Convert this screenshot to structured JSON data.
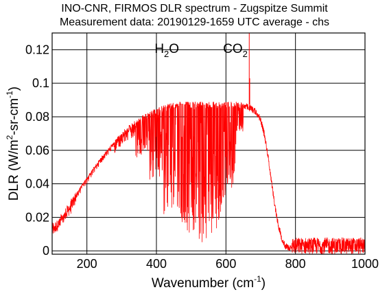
{
  "chart_data": {
    "type": "line",
    "title": "INO-CNR, FIRMOS DLR spectrum - Zugspitze Summit",
    "subtitle": "Measurement data: 20190129-1659 UTC average - chs",
    "xlabel": "Wavenumber (cm",
    "xlabel_sup": "-1",
    "xlabel_end": ")",
    "ylabel": "DLR (W/m",
    "ylabel_sup1": "2",
    "ylabel_mid": "-sr-cm",
    "ylabel_sup2": "-1",
    "ylabel_end": ")",
    "xlim": [
      100,
      1000
    ],
    "ylim": [
      -0.002,
      0.13
    ],
    "xticks": [
      200,
      400,
      600,
      800,
      1000
    ],
    "xtick_labels": [
      "200",
      "400",
      "600",
      "800",
      "1000"
    ],
    "yticks": [
      0,
      0.02,
      0.04,
      0.06,
      0.08,
      0.1,
      0.12
    ],
    "ytick_labels": [
      "0",
      "0.02",
      "0.04",
      "0.06",
      "0.08",
      "0.1",
      "0.12"
    ],
    "grid": true,
    "annotations": [
      {
        "text": "H",
        "sub": "2",
        "tail": "O",
        "x": 430,
        "y": 0.1205
      },
      {
        "text": "CO",
        "sub": "2",
        "tail": "",
        "x": 627,
        "y": 0.1205
      }
    ],
    "series": [
      {
        "color": "#ff0000",
        "envelope": [
          [
            100,
            0.015
          ],
          [
            120,
            0.018
          ],
          [
            140,
            0.024
          ],
          [
            160,
            0.031
          ],
          [
            180,
            0.038
          ],
          [
            200,
            0.044
          ],
          [
            220,
            0.05
          ],
          [
            240,
            0.056
          ],
          [
            260,
            0.061
          ],
          [
            280,
            0.066
          ],
          [
            300,
            0.071
          ],
          [
            320,
            0.075
          ],
          [
            340,
            0.078
          ],
          [
            360,
            0.081
          ],
          [
            380,
            0.083
          ],
          [
            400,
            0.085
          ],
          [
            420,
            0.087
          ],
          [
            440,
            0.088
          ],
          [
            460,
            0.089
          ],
          [
            480,
            0.089
          ],
          [
            500,
            0.089
          ],
          [
            520,
            0.089
          ],
          [
            540,
            0.089
          ],
          [
            560,
            0.089
          ],
          [
            580,
            0.089
          ],
          [
            600,
            0.089
          ],
          [
            620,
            0.089
          ],
          [
            640,
            0.089
          ],
          [
            660,
            0.088
          ],
          [
            680,
            0.086
          ],
          [
            690,
            0.084
          ],
          [
            700,
            0.08
          ],
          [
            710,
            0.072
          ],
          [
            720,
            0.06
          ],
          [
            730,
            0.045
          ],
          [
            740,
            0.03
          ],
          [
            750,
            0.018
          ],
          [
            760,
            0.01
          ],
          [
            770,
            0.005
          ],
          [
            790,
            0.003
          ],
          [
            820,
            0.003
          ],
          [
            880,
            0.003
          ],
          [
            940,
            0.003
          ],
          [
            1000,
            0.003
          ]
        ],
        "windows": [
          [
            100,
            160,
            0.0
          ],
          [
            160,
            280,
            0.03
          ],
          [
            280,
            340,
            0.12
          ],
          [
            340,
            380,
            0.3
          ],
          [
            380,
            420,
            0.5
          ],
          [
            420,
            470,
            0.75
          ],
          [
            470,
            520,
            0.88
          ],
          [
            520,
            560,
            0.95
          ],
          [
            560,
            600,
            0.85
          ],
          [
            600,
            630,
            0.6
          ],
          [
            630,
            650,
            0.2
          ],
          [
            650,
            1000,
            0.0
          ]
        ],
        "spike": {
          "x": 667,
          "y": 0.13
        },
        "spike2": {
          "x": 668,
          "y": 0.103
        },
        "noise_after": 790,
        "noise_amp": 0.005
      }
    ]
  }
}
